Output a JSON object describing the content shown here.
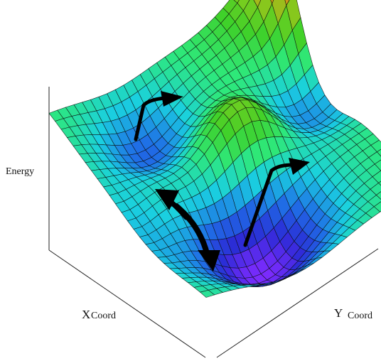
{
  "labels": {
    "z_axis": "Energy",
    "x_axis_letter": "X",
    "x_axis_word": "Coord",
    "y_axis_letter": "Y",
    "y_axis_word": "Coord"
  },
  "colors": {
    "surface_gradient": [
      "#7f2bff",
      "#2b2bd6",
      "#1f6fe6",
      "#1ad0e0",
      "#2ee87a",
      "#3fd12a",
      "#7ccc1e",
      "#c8a818",
      "#d4561e",
      "#c0281f"
    ],
    "mesh_line": "#0a0a0a",
    "arrow": "#000000",
    "axis": "#222222"
  },
  "surface": {
    "description_free_note_removed": true
  }
}
